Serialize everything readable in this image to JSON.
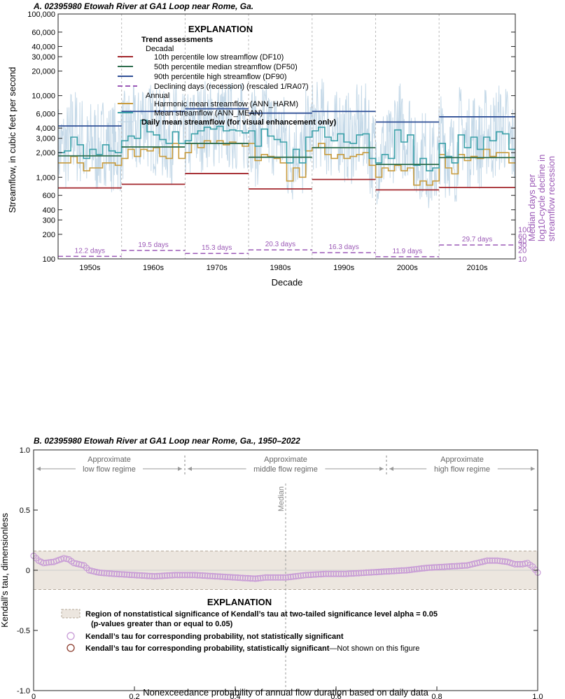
{
  "colors": {
    "df10": "#a3262b",
    "df50": "#2e6e4e",
    "df90": "#2f4f96",
    "recession": "#9b59b6",
    "ann_harm": "#c89b3c",
    "ann_mean": "#3aa0a8",
    "daily": "#c5d9e8",
    "band": "#ece6df",
    "tau_marker": "#c79ad6",
    "tau_sig": "#8b3a2b"
  },
  "chart_data": [
    {
      "type": "line",
      "title": "A. 02395980 Etowah River at GA1 Loop near Rome, Ga.",
      "xlabel": "Decade",
      "ylabel": "Streamflow, in cubic feet per second",
      "ylabel_right": [
        "Median days per",
        "log10-cycle decline in",
        "streamflow recession"
      ],
      "y_scale": "log",
      "ylim": [
        100,
        100000
      ],
      "xlim": [
        1950,
        2022
      ],
      "y_ticks": [
        "100",
        "200",
        "300",
        "400",
        "600",
        "1,000",
        "2,000",
        "3,000",
        "4,000",
        "6,000",
        "10,000",
        "20,000",
        "30,000",
        "40,000",
        "60,000",
        "100,000"
      ],
      "y_tick_values": [
        100,
        200,
        300,
        400,
        600,
        1000,
        2000,
        3000,
        4000,
        6000,
        10000,
        20000,
        30000,
        40000,
        60000,
        100000
      ],
      "y2_scale": "log",
      "y2_ticks": [
        "10",
        "20",
        "30",
        "40",
        "60",
        "100"
      ],
      "y2_tick_values": [
        10,
        20,
        30,
        40,
        60,
        100
      ],
      "decades": [
        "1950s",
        "1960s",
        "1970s",
        "1980s",
        "1990s",
        "2000s",
        "2010s"
      ],
      "decade_starts": [
        1950,
        1960,
        1970,
        1980,
        1990,
        2000,
        2010
      ],
      "decade_ends": [
        1960,
        1970,
        1980,
        1990,
        2000,
        2010,
        2022
      ],
      "df10": [
        740,
        820,
        1110,
        720,
        940,
        700,
        750
      ],
      "df50": [
        1830,
        2350,
        2600,
        1760,
        2300,
        1440,
        1740
      ],
      "df90": [
        4250,
        6400,
        6900,
        6100,
        6400,
        4750,
        5500
      ],
      "recession_days": [
        12.2,
        19.5,
        15.3,
        20.3,
        16.3,
        11.9,
        29.7
      ],
      "recession_labels": [
        "12.2 days",
        "19.5 days",
        "15.3 days",
        "20.3 days",
        "16.3 days",
        "11.9 days",
        "29.7 days"
      ],
      "years": [
        1950,
        1951,
        1952,
        1953,
        1954,
        1955,
        1956,
        1957,
        1958,
        1959,
        1960,
        1961,
        1962,
        1963,
        1964,
        1965,
        1966,
        1967,
        1968,
        1969,
        1970,
        1971,
        1972,
        1973,
        1974,
        1975,
        1976,
        1977,
        1978,
        1979,
        1980,
        1981,
        1982,
        1983,
        1984,
        1985,
        1986,
        1987,
        1988,
        1989,
        1990,
        1991,
        1992,
        1993,
        1994,
        1995,
        1996,
        1997,
        1998,
        1999,
        2000,
        2001,
        2002,
        2003,
        2004,
        2005,
        2006,
        2007,
        2008,
        2009,
        2010,
        2011,
        2012,
        2013,
        2014,
        2015,
        2016,
        2017,
        2018,
        2019,
        2020,
        2021
      ],
      "ann_mean": [
        2000,
        2100,
        3100,
        2500,
        1700,
        2200,
        1900,
        2500,
        2100,
        2000,
        2800,
        3200,
        3000,
        5000,
        3600,
        3300,
        2900,
        2600,
        3600,
        2600,
        2800,
        3400,
        3700,
        4100,
        3900,
        4200,
        3700,
        3800,
        3700,
        3500,
        3700,
        2400,
        3900,
        3200,
        2900,
        2700,
        1500,
        2200,
        1500,
        3100,
        3700,
        4100,
        3100,
        2800,
        3400,
        2700,
        2600,
        3300,
        3400,
        1700,
        1500,
        1900,
        1700,
        3800,
        2700,
        3300,
        1400,
        1700,
        1200,
        1300,
        2600,
        1800,
        1500,
        3300,
        2300,
        3100,
        2200,
        3100,
        2800,
        3600,
        3400,
        2200
      ],
      "ann_harm": [
        1500,
        1500,
        1800,
        1500,
        1200,
        1300,
        1300,
        1500,
        1500,
        1400,
        1700,
        2200,
        1800,
        2200,
        2100,
        2300,
        1800,
        1700,
        2600,
        1700,
        2000,
        2600,
        2300,
        2800,
        2600,
        2800,
        2500,
        2700,
        2600,
        2400,
        2600,
        1600,
        1900,
        1800,
        1700,
        1500,
        900,
        1300,
        1000,
        2100,
        2300,
        2600,
        1900,
        1700,
        1900,
        1700,
        1800,
        1900,
        2000,
        1400,
        1000,
        1300,
        1200,
        1400,
        1200,
        1300,
        800,
        900,
        800,
        900,
        1900,
        1300,
        1100,
        1900,
        1600,
        1800,
        1700,
        2200,
        1800,
        2000,
        2000,
        1500
      ],
      "legend_title": "EXPLANATION",
      "legend_group": "Trend assessments",
      "legend_decadal": "Decadal",
      "legend_annual": "Annual",
      "legend_items": {
        "df10": "10th percentile low streamflow (DF10)",
        "df50": "50th percentile median streamflow (DF50)",
        "df90": "90th percentile high streamflow (DF90)",
        "recession": "Declining days (recession) (rescaled 1/RA07)",
        "ann_harm": "Harmonic mean streamflow (ANN_HARM)",
        "ann_mean": "Mean streamflow (ANN_MEAN)",
        "daily": "Daily mean streamflow (for visual enhancement only)"
      }
    },
    {
      "type": "scatter",
      "title": "B. 02395980 Etowah River at GA1 Loop near Rome, Ga., 1950–2022",
      "xlabel": "Nonexceedance probability of annual flow duration based on daily data",
      "ylabel": "Kendall's tau, dimensionless",
      "xlim": [
        0,
        1
      ],
      "ylim": [
        -1,
        1
      ],
      "x_ticks": [
        "0",
        "0.2",
        "0.4",
        "0.6",
        "0.8",
        "1.0"
      ],
      "x_tick_values": [
        0,
        0.2,
        0.4,
        0.6,
        0.8,
        1.0
      ],
      "y_ticks": [
        "-1.0",
        "-0.5",
        "0",
        "0.5",
        "1.0"
      ],
      "y_tick_values": [
        -1,
        -0.5,
        0,
        0.5,
        1
      ],
      "nonsig_band": [
        -0.16,
        0.16
      ],
      "median_x": 0.5,
      "median_label": "Median",
      "regime_boundaries": [
        0.3,
        0.7
      ],
      "regimes": [
        {
          "line1": "Approximate",
          "line2": "low flow regime"
        },
        {
          "line1": "Approximate",
          "line2": "middle flow regime"
        },
        {
          "line1": "Approximate",
          "line2": "high flow regime"
        }
      ],
      "tau_curve": [
        [
          0,
          0.12
        ],
        [
          0.01,
          0.08
        ],
        [
          0.02,
          0.06
        ],
        [
          0.04,
          0.07
        ],
        [
          0.06,
          0.1
        ],
        [
          0.07,
          0.09
        ],
        [
          0.08,
          0.06
        ],
        [
          0.1,
          0.04
        ],
        [
          0.11,
          0.0
        ],
        [
          0.13,
          -0.02
        ],
        [
          0.16,
          -0.03
        ],
        [
          0.2,
          -0.04
        ],
        [
          0.24,
          -0.05
        ],
        [
          0.28,
          -0.04
        ],
        [
          0.32,
          -0.04
        ],
        [
          0.36,
          -0.05
        ],
        [
          0.4,
          -0.06
        ],
        [
          0.44,
          -0.07
        ],
        [
          0.46,
          -0.06
        ],
        [
          0.5,
          -0.06
        ],
        [
          0.54,
          -0.04
        ],
        [
          0.58,
          -0.03
        ],
        [
          0.62,
          -0.03
        ],
        [
          0.66,
          -0.02
        ],
        [
          0.7,
          -0.01
        ],
        [
          0.74,
          0.0
        ],
        [
          0.78,
          0.02
        ],
        [
          0.82,
          0.03
        ],
        [
          0.86,
          0.04
        ],
        [
          0.88,
          0.06
        ],
        [
          0.9,
          0.08
        ],
        [
          0.92,
          0.08
        ],
        [
          0.94,
          0.07
        ],
        [
          0.955,
          0.05
        ],
        [
          0.97,
          0.05
        ],
        [
          0.98,
          0.06
        ],
        [
          0.99,
          0.03
        ],
        [
          1.0,
          -0.02
        ]
      ],
      "legend_title": "EXPLANATION",
      "legend_band_1": "Region of nonstatistical significance of Kendall’s tau at two-tailed significance level alpha = 0.05",
      "legend_band_2": "(p-values greater than or equal to 0.05)",
      "legend_nonsig": "Kendall’s tau for corresponding probability, not statistically significant",
      "legend_sig": "Kendall’s tau for corresponding probability, statistically significant",
      "legend_sig_note": "—Not shown on this figure"
    }
  ]
}
